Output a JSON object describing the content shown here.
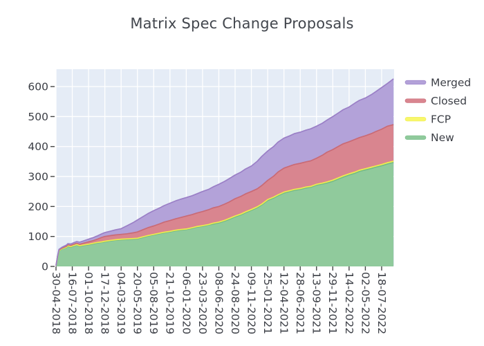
{
  "chart_data": {
    "type": "area",
    "stacked": true,
    "title": "Matrix Spec Change Proposals",
    "legend_position": "right",
    "grid": true,
    "plot_bg": "#e5ecf6",
    "grid_color": "#ffffff",
    "tick_color": "#444444",
    "text_color": "#3b3e45",
    "ylim": [
      0,
      658
    ],
    "y_ticks": [
      0,
      100,
      200,
      300,
      400,
      500,
      600
    ],
    "x_tick_days": [
      0,
      77,
      154,
      231,
      308,
      385,
      462,
      539,
      616,
      693,
      770,
      847,
      924,
      1001,
      1078,
      1155,
      1232,
      1309,
      1386,
      1463,
      1540
    ],
    "x_tick_labels": [
      "30-04-2018",
      "16-07-2018",
      "01-10-2018",
      "17-12-2018",
      "04-03-2019",
      "20-05-2019",
      "05-08-2019",
      "21-10-2019",
      "06-01-2020",
      "23-03-2020",
      "08-06-2020",
      "24-08-2020",
      "09-11-2020",
      "25-01-2021",
      "12-04-2021",
      "28-06-2021",
      "13-09-2021",
      "29-11-2021",
      "14-02-2022",
      "02-05-2022",
      "18-07-2022"
    ],
    "xlim_days": [
      0,
      1599
    ],
    "stack_order_bottom_to_top": [
      "new",
      "fcp",
      "closed",
      "merged"
    ],
    "series": [
      {
        "key": "merged",
        "name": "Merged",
        "fill": "#b3a2d9",
        "line": "#9a7fc6"
      },
      {
        "key": "closed",
        "name": "Closed",
        "fill": "#d9858f",
        "line": "#c96a75"
      },
      {
        "key": "fcp",
        "name": "FCP",
        "fill": "#f8f76b",
        "line": "#eeec4d"
      },
      {
        "key": "new",
        "name": "New",
        "fill": "#90ca9c",
        "line": "#74bb86"
      }
    ],
    "points": [
      {
        "date": "30-04-2018",
        "day": 0,
        "new": 2,
        "fcp": 0,
        "closed": 0,
        "merged": 0
      },
      {
        "date": "07-05-2018",
        "day": 7,
        "new": 30,
        "fcp": 1,
        "closed": 1,
        "merged": 1
      },
      {
        "date": "14-05-2018",
        "day": 14,
        "new": 52,
        "fcp": 1,
        "closed": 2,
        "merged": 2
      },
      {
        "date": "28-05-2018",
        "day": 28,
        "new": 58,
        "fcp": 1,
        "closed": 2,
        "merged": 3
      },
      {
        "date": "18-06-2018",
        "day": 49,
        "new": 62,
        "fcp": 2,
        "closed": 3,
        "merged": 4
      },
      {
        "date": "25-06-2018",
        "day": 56,
        "new": 67,
        "fcp": 2,
        "closed": 3,
        "merged": 4
      },
      {
        "date": "09-07-2018",
        "day": 70,
        "new": 64,
        "fcp": 2,
        "closed": 4,
        "merged": 5
      },
      {
        "date": "16-07-2018",
        "day": 77,
        "new": 66,
        "fcp": 2,
        "closed": 4,
        "merged": 5
      },
      {
        "date": "06-08-2018",
        "day": 98,
        "new": 71,
        "fcp": 2,
        "closed": 4,
        "merged": 6
      },
      {
        "date": "20-08-2018",
        "day": 112,
        "new": 67,
        "fcp": 2,
        "closed": 5,
        "merged": 7
      },
      {
        "date": "10-09-2018",
        "day": 133,
        "new": 70,
        "fcp": 2,
        "closed": 6,
        "merged": 8
      },
      {
        "date": "01-10-2018",
        "day": 154,
        "new": 72,
        "fcp": 2,
        "closed": 8,
        "merged": 9
      },
      {
        "date": "22-10-2018",
        "day": 175,
        "new": 75,
        "fcp": 2,
        "closed": 9,
        "merged": 10
      },
      {
        "date": "12-11-2018",
        "day": 196,
        "new": 78,
        "fcp": 2,
        "closed": 11,
        "merged": 11
      },
      {
        "date": "03-12-2018",
        "day": 217,
        "new": 80,
        "fcp": 2,
        "closed": 15,
        "merged": 12
      },
      {
        "date": "17-12-2018",
        "day": 231,
        "new": 82,
        "fcp": 2,
        "closed": 16,
        "merged": 13
      },
      {
        "date": "14-01-2019",
        "day": 259,
        "new": 85,
        "fcp": 2,
        "closed": 16,
        "merged": 15
      },
      {
        "date": "04-02-2019",
        "day": 280,
        "new": 87,
        "fcp": 2,
        "closed": 16,
        "merged": 17
      },
      {
        "date": "04-03-2019",
        "day": 308,
        "new": 89,
        "fcp": 2,
        "closed": 16,
        "merged": 19
      },
      {
        "date": "01-04-2019",
        "day": 336,
        "new": 90,
        "fcp": 2,
        "closed": 17,
        "merged": 27
      },
      {
        "date": "29-04-2019",
        "day": 364,
        "new": 91,
        "fcp": 2,
        "closed": 19,
        "merged": 34
      },
      {
        "date": "20-05-2019",
        "day": 385,
        "new": 92,
        "fcp": 2,
        "closed": 21,
        "merged": 40
      },
      {
        "date": "17-06-2019",
        "day": 413,
        "new": 97,
        "fcp": 2,
        "closed": 24,
        "merged": 44
      },
      {
        "date": "08-07-2019",
        "day": 434,
        "new": 101,
        "fcp": 2,
        "closed": 26,
        "merged": 47
      },
      {
        "date": "05-08-2019",
        "day": 462,
        "new": 105,
        "fcp": 2,
        "closed": 28,
        "merged": 51
      },
      {
        "date": "02-09-2019",
        "day": 490,
        "new": 109,
        "fcp": 2,
        "closed": 31,
        "merged": 53
      },
      {
        "date": "23-09-2019",
        "day": 511,
        "new": 112,
        "fcp": 2,
        "closed": 34,
        "merged": 55
      },
      {
        "date": "21-10-2019",
        "day": 539,
        "new": 115,
        "fcp": 2,
        "closed": 36,
        "merged": 58
      },
      {
        "date": "18-11-2019",
        "day": 567,
        "new": 119,
        "fcp": 2,
        "closed": 38,
        "merged": 60
      },
      {
        "date": "09-12-2019",
        "day": 588,
        "new": 121,
        "fcp": 2,
        "closed": 40,
        "merged": 61
      },
      {
        "date": "06-01-2020",
        "day": 616,
        "new": 123,
        "fcp": 2,
        "closed": 43,
        "merged": 62
      },
      {
        "date": "03-02-2020",
        "day": 644,
        "new": 127,
        "fcp": 2,
        "closed": 44,
        "merged": 63
      },
      {
        "date": "24-02-2020",
        "day": 665,
        "new": 131,
        "fcp": 2,
        "closed": 45,
        "merged": 64
      },
      {
        "date": "23-03-2020",
        "day": 693,
        "new": 134,
        "fcp": 2,
        "closed": 47,
        "merged": 67
      },
      {
        "date": "20-04-2020",
        "day": 721,
        "new": 138,
        "fcp": 2,
        "closed": 49,
        "merged": 68
      },
      {
        "date": "11-05-2020",
        "day": 742,
        "new": 141,
        "fcp": 3,
        "closed": 51,
        "merged": 70
      },
      {
        "date": "08-06-2020",
        "day": 770,
        "new": 145,
        "fcp": 3,
        "closed": 52,
        "merged": 74
      },
      {
        "date": "06-07-2020",
        "day": 798,
        "new": 151,
        "fcp": 3,
        "closed": 54,
        "merged": 76
      },
      {
        "date": "27-07-2020",
        "day": 819,
        "new": 157,
        "fcp": 3,
        "closed": 55,
        "merged": 78
      },
      {
        "date": "24-08-2020",
        "day": 847,
        "new": 165,
        "fcp": 3,
        "closed": 58,
        "merged": 79
      },
      {
        "date": "21-09-2020",
        "day": 875,
        "new": 172,
        "fcp": 3,
        "closed": 59,
        "merged": 81
      },
      {
        "date": "12-10-2020",
        "day": 896,
        "new": 179,
        "fcp": 3,
        "closed": 60,
        "merged": 83
      },
      {
        "date": "09-11-2020",
        "day": 924,
        "new": 187,
        "fcp": 3,
        "closed": 60,
        "merged": 85
      },
      {
        "date": "07-12-2020",
        "day": 952,
        "new": 196,
        "fcp": 3,
        "closed": 60,
        "merged": 92
      },
      {
        "date": "28-12-2020",
        "day": 973,
        "new": 205,
        "fcp": 3,
        "closed": 62,
        "merged": 97
      },
      {
        "date": "25-01-2021",
        "day": 1001,
        "new": 220,
        "fcp": 3,
        "closed": 64,
        "merged": 98
      },
      {
        "date": "22-02-2021",
        "day": 1029,
        "new": 228,
        "fcp": 3,
        "closed": 70,
        "merged": 99
      },
      {
        "date": "15-03-2021",
        "day": 1050,
        "new": 236,
        "fcp": 3,
        "closed": 76,
        "merged": 100
      },
      {
        "date": "12-04-2021",
        "day": 1078,
        "new": 245,
        "fcp": 3,
        "closed": 80,
        "merged": 100
      },
      {
        "date": "10-05-2021",
        "day": 1106,
        "new": 250,
        "fcp": 3,
        "closed": 82,
        "merged": 101
      },
      {
        "date": "31-05-2021",
        "day": 1127,
        "new": 254,
        "fcp": 3,
        "closed": 83,
        "merged": 103
      },
      {
        "date": "28-06-2021",
        "day": 1155,
        "new": 257,
        "fcp": 3,
        "closed": 84,
        "merged": 104
      },
      {
        "date": "26-07-2021",
        "day": 1183,
        "new": 262,
        "fcp": 3,
        "closed": 84,
        "merged": 106
      },
      {
        "date": "16-08-2021",
        "day": 1204,
        "new": 264,
        "fcp": 3,
        "closed": 85,
        "merged": 107
      },
      {
        "date": "13-09-2021",
        "day": 1232,
        "new": 271,
        "fcp": 3,
        "closed": 87,
        "merged": 107
      },
      {
        "date": "11-10-2021",
        "day": 1260,
        "new": 275,
        "fcp": 3,
        "closed": 93,
        "merged": 107
      },
      {
        "date": "01-11-2021",
        "day": 1281,
        "new": 278,
        "fcp": 4,
        "closed": 99,
        "merged": 107
      },
      {
        "date": "29-11-2021",
        "day": 1309,
        "new": 284,
        "fcp": 4,
        "closed": 102,
        "merged": 110
      },
      {
        "date": "27-12-2021",
        "day": 1337,
        "new": 292,
        "fcp": 4,
        "closed": 105,
        "merged": 112
      },
      {
        "date": "17-01-2022",
        "day": 1358,
        "new": 298,
        "fcp": 4,
        "closed": 107,
        "merged": 114
      },
      {
        "date": "14-02-2022",
        "day": 1386,
        "new": 305,
        "fcp": 4,
        "closed": 107,
        "merged": 116
      },
      {
        "date": "14-03-2022",
        "day": 1414,
        "new": 311,
        "fcp": 4,
        "closed": 109,
        "merged": 121
      },
      {
        "date": "04-04-2022",
        "day": 1435,
        "new": 317,
        "fcp": 4,
        "closed": 109,
        "merged": 124
      },
      {
        "date": "02-05-2022",
        "day": 1463,
        "new": 322,
        "fcp": 4,
        "closed": 110,
        "merged": 126
      },
      {
        "date": "30-05-2022",
        "day": 1491,
        "new": 327,
        "fcp": 4,
        "closed": 112,
        "merged": 130
      },
      {
        "date": "20-06-2022",
        "day": 1512,
        "new": 331,
        "fcp": 4,
        "closed": 115,
        "merged": 133
      },
      {
        "date": "18-07-2022",
        "day": 1540,
        "new": 336,
        "fcp": 4,
        "closed": 118,
        "merged": 139
      },
      {
        "date": "15-08-2022",
        "day": 1568,
        "new": 342,
        "fcp": 4,
        "closed": 122,
        "merged": 143
      },
      {
        "date": "12-09-2022",
        "day": 1596,
        "new": 347,
        "fcp": 4,
        "closed": 122,
        "merged": 153
      }
    ]
  }
}
